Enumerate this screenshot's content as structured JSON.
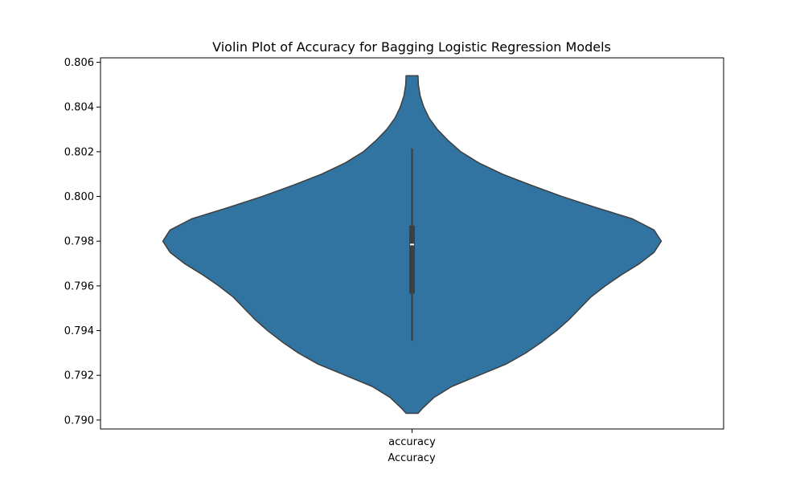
{
  "chart_data": {
    "type": "violin",
    "title": "Violin Plot of Accuracy for Bagging Logistic Regression Models",
    "xlabel": "Accuracy",
    "ylabel": "",
    "categories": [
      "accuracy"
    ],
    "ylim": [
      0.7896,
      0.8062
    ],
    "yticks": [
      "0.790",
      "0.792",
      "0.794",
      "0.796",
      "0.798",
      "0.800",
      "0.802",
      "0.804",
      "0.806"
    ],
    "grid": false,
    "colors": {
      "fill": "#3274a1",
      "edge": "#3f3f3f",
      "box": "#3f3f3f",
      "median": "#ffffff"
    },
    "violins": [
      {
        "category": "accuracy",
        "box": {
          "whisker_low": 0.79355,
          "q1": 0.79565,
          "median": 0.79785,
          "q3": 0.7987,
          "whisker_high": 0.80215
        },
        "density_profile": [
          [
            0.7903,
            0.033
          ],
          [
            0.7905,
            0.055
          ],
          [
            0.791,
            0.12
          ],
          [
            0.7915,
            0.22
          ],
          [
            0.792,
            0.37
          ],
          [
            0.7925,
            0.52
          ],
          [
            0.793,
            0.63
          ],
          [
            0.7935,
            0.72
          ],
          [
            0.794,
            0.8
          ],
          [
            0.7945,
            0.87
          ],
          [
            0.795,
            0.93
          ],
          [
            0.7955,
            0.99
          ],
          [
            0.796,
            1.07
          ],
          [
            0.7965,
            1.16
          ],
          [
            0.797,
            1.26
          ],
          [
            0.7975,
            1.34
          ],
          [
            0.798,
            1.38
          ],
          [
            0.7985,
            1.34
          ],
          [
            0.799,
            1.22
          ],
          [
            0.7995,
            1.02
          ],
          [
            0.8,
            0.83
          ],
          [
            0.8005,
            0.66
          ],
          [
            0.801,
            0.5
          ],
          [
            0.8015,
            0.37
          ],
          [
            0.802,
            0.27
          ],
          [
            0.8025,
            0.2
          ],
          [
            0.803,
            0.14
          ],
          [
            0.8035,
            0.095
          ],
          [
            0.804,
            0.065
          ],
          [
            0.8045,
            0.045
          ],
          [
            0.805,
            0.035
          ],
          [
            0.8054,
            0.033
          ]
        ]
      }
    ]
  }
}
